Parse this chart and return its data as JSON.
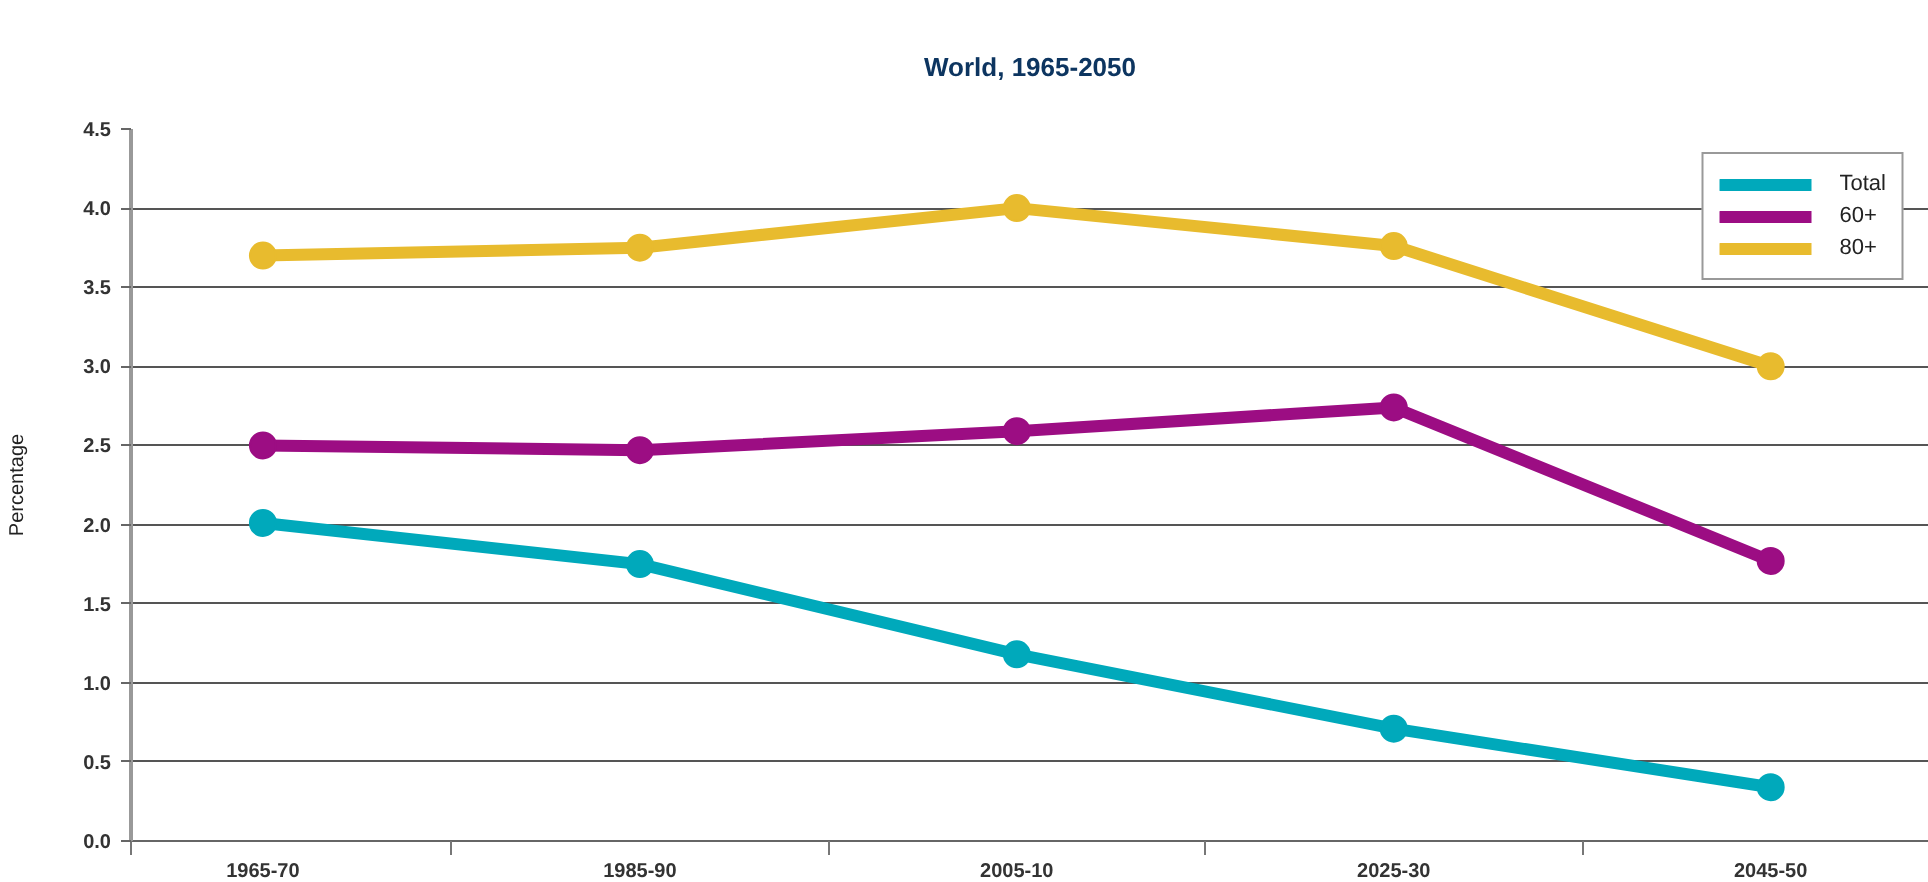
{
  "chart_data": {
    "type": "line",
    "title": "World, 1965-2050",
    "ylabel": "Percentage",
    "categories": [
      "1965-70",
      "1985-90",
      "2005-10",
      "2025-30",
      "2045-50"
    ],
    "series": [
      {
        "name": "Total",
        "color": "#00a9bb",
        "values": [
          2.01,
          1.75,
          1.18,
          0.71,
          0.34
        ]
      },
      {
        "name": "60+",
        "color": "#9c0d83",
        "values": [
          2.5,
          2.47,
          2.59,
          2.74,
          1.77
        ]
      },
      {
        "name": "80+",
        "color": "#e8bb2e",
        "values": [
          3.7,
          3.75,
          4.0,
          3.76,
          3.0
        ]
      }
    ],
    "ylim": [
      0,
      4.5
    ],
    "yticks": [
      {
        "value": 0,
        "label": "0.0"
      },
      0.5,
      {
        "value": 1,
        "label": "1.0"
      },
      1.5,
      {
        "value": 2,
        "label": "2.0"
      },
      2.5,
      {
        "value": 3,
        "label": "3.0"
      },
      3.5,
      {
        "value": 4,
        "label": "4.0"
      },
      4.5
    ],
    "grid": "y",
    "legend": "top right",
    "marker": "circle",
    "line_style": "solid"
  }
}
